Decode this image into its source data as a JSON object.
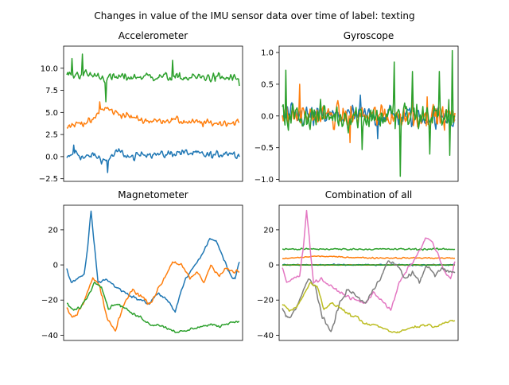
{
  "figure": {
    "title": "Changes in value of the IMU sensor data over time of label: texting"
  },
  "palette": {
    "blue": "#1f77b4",
    "orange": "#ff7f0e",
    "green": "#2ca02c",
    "pink": "#e377c2",
    "gray": "#7f7f7f",
    "olive": "#bcbd22"
  },
  "chart_data": [
    {
      "type": "line",
      "title": "Accelerometer",
      "ylim": [
        -2.8,
        12.5
      ],
      "yticks": [
        -2.5,
        0.0,
        2.5,
        5.0,
        7.5,
        10.0
      ],
      "ytick_labels": [
        "−2.5",
        "0.0",
        "2.5",
        "5.0",
        "7.5",
        "10.0"
      ],
      "grid": false,
      "x_axis_visible": false,
      "n_points": 200,
      "series": [
        {
          "color": "blue",
          "key": [
            [
              0,
              -0.3
            ],
            [
              10,
              0.5
            ],
            [
              20,
              -0.2
            ],
            [
              30,
              0.2
            ],
            [
              45,
              -0.5
            ],
            [
              60,
              0.6
            ],
            [
              75,
              -0.2
            ],
            [
              90,
              0.4
            ],
            [
              110,
              0.2
            ],
            [
              130,
              0.5
            ],
            [
              150,
              0.3
            ],
            [
              170,
              0.1
            ],
            [
              185,
              0.5
            ],
            [
              199,
              0.2
            ]
          ],
          "noise": 0.6,
          "extremes": [
            [
              8,
              1.3
            ],
            [
              47,
              -1.8
            ]
          ]
        },
        {
          "color": "orange",
          "key": [
            [
              0,
              3.4
            ],
            [
              15,
              3.8
            ],
            [
              30,
              4.0
            ],
            [
              38,
              5.2
            ],
            [
              45,
              5.5
            ],
            [
              55,
              5.0
            ],
            [
              70,
              4.6
            ],
            [
              85,
              4.2
            ],
            [
              100,
              4.0
            ],
            [
              120,
              4.2
            ],
            [
              140,
              3.9
            ],
            [
              160,
              3.8
            ],
            [
              180,
              3.8
            ],
            [
              199,
              3.9
            ]
          ],
          "noise": 0.55,
          "extremes": [
            [
              38,
              6.2
            ]
          ]
        },
        {
          "color": "green",
          "key": [
            [
              0,
              9.3
            ],
            [
              20,
              9.3
            ],
            [
              35,
              9.2
            ],
            [
              45,
              8.8
            ],
            [
              60,
              9.0
            ],
            [
              80,
              9.0
            ],
            [
              100,
              9.1
            ],
            [
              130,
              8.9
            ],
            [
              160,
              9.0
            ],
            [
              199,
              8.8
            ]
          ],
          "noise": 0.7,
          "extremes": [
            [
              18,
              11.6
            ],
            [
              6,
              11.1
            ],
            [
              45,
              6.2
            ],
            [
              122,
              10.9
            ],
            [
              199,
              8.0
            ]
          ]
        }
      ]
    },
    {
      "type": "line",
      "title": "Gyroscope",
      "ylim": [
        -1.03,
        1.1
      ],
      "yticks": [
        -1.0,
        -0.5,
        0.0,
        0.5,
        1.0
      ],
      "ytick_labels": [
        "−1.0",
        "−0.5",
        "0.0",
        "0.5",
        "1.0"
      ],
      "grid": false,
      "x_axis_visible": false,
      "n_points": 200,
      "series": [
        {
          "color": "blue",
          "key": [
            [
              0,
              0.0
            ],
            [
              50,
              0.0
            ],
            [
              100,
              0.0
            ],
            [
              150,
              0.0
            ],
            [
              199,
              -0.05
            ]
          ],
          "noise": 0.22,
          "extremes": [
            [
              90,
              0.33
            ],
            [
              110,
              -0.36
            ]
          ]
        },
        {
          "color": "orange",
          "key": [
            [
              0,
              0.0
            ],
            [
              50,
              0.0
            ],
            [
              100,
              0.0
            ],
            [
              150,
              0.0
            ],
            [
              199,
              0.0
            ]
          ],
          "noise": 0.25,
          "extremes": [
            [
              20,
              0.5
            ],
            [
              78,
              -0.42
            ],
            [
              150,
              0.5
            ],
            [
              167,
              0.3
            ]
          ]
        },
        {
          "color": "green",
          "key": [
            [
              0,
              0.0
            ],
            [
              50,
              0.0
            ],
            [
              100,
              0.0
            ],
            [
              150,
              0.0
            ],
            [
              199,
              0.0
            ]
          ],
          "noise": 0.33,
          "extremes": [
            [
              4,
              0.72
            ],
            [
              92,
              -0.53
            ],
            [
              129,
              0.85
            ],
            [
              136,
              -0.95
            ],
            [
              150,
              0.7
            ],
            [
              170,
              -0.6
            ],
            [
              181,
              0.7
            ],
            [
              196,
              1.03
            ],
            [
              193,
              -0.62
            ]
          ]
        }
      ]
    },
    {
      "type": "line",
      "title": "Magnetometer",
      "ylim": [
        -43,
        34
      ],
      "yticks": [
        -40,
        -20,
        0,
        20
      ],
      "ytick_labels": [
        "−40",
        "−20",
        "0",
        "20"
      ],
      "grid": false,
      "x_axis_visible": false,
      "n_points": 200,
      "series": [
        {
          "color": "blue",
          "key": [
            [
              0,
              -2
            ],
            [
              5,
              -10
            ],
            [
              12,
              -8
            ],
            [
              20,
              -6
            ],
            [
              24,
              10
            ],
            [
              28,
              31
            ],
            [
              32,
              10
            ],
            [
              36,
              -10
            ],
            [
              45,
              -8
            ],
            [
              55,
              -12
            ],
            [
              65,
              -15
            ],
            [
              75,
              -18
            ],
            [
              85,
              -20
            ],
            [
              95,
              -22
            ],
            [
              105,
              -16
            ],
            [
              115,
              -20
            ],
            [
              125,
              -26
            ],
            [
              135,
              -10
            ],
            [
              145,
              -2
            ],
            [
              155,
              5
            ],
            [
              165,
              15
            ],
            [
              172,
              14
            ],
            [
              180,
              5
            ],
            [
              188,
              -5
            ],
            [
              194,
              -8
            ],
            [
              199,
              2
            ]
          ],
          "noise": 1.2
        },
        {
          "color": "orange",
          "key": [
            [
              0,
              -25
            ],
            [
              6,
              -30
            ],
            [
              12,
              -28
            ],
            [
              20,
              -20
            ],
            [
              30,
              -8
            ],
            [
              38,
              -12
            ],
            [
              46,
              -30
            ],
            [
              56,
              -38
            ],
            [
              66,
              -22
            ],
            [
              76,
              -14
            ],
            [
              86,
              -18
            ],
            [
              96,
              -22
            ],
            [
              104,
              -15
            ],
            [
              112,
              -8
            ],
            [
              122,
              2
            ],
            [
              132,
              0
            ],
            [
              142,
              -8
            ],
            [
              150,
              -4
            ],
            [
              158,
              -10
            ],
            [
              166,
              0
            ],
            [
              176,
              -6
            ],
            [
              184,
              -2
            ],
            [
              192,
              -4
            ],
            [
              199,
              -4
            ]
          ],
          "noise": 1.5
        },
        {
          "color": "green",
          "key": [
            [
              0,
              -22
            ],
            [
              8,
              -26
            ],
            [
              16,
              -24
            ],
            [
              24,
              -18
            ],
            [
              32,
              -10
            ],
            [
              40,
              -12
            ],
            [
              48,
              -25
            ],
            [
              56,
              -22
            ],
            [
              66,
              -24
            ],
            [
              76,
              -28
            ],
            [
              86,
              -30
            ],
            [
              96,
              -34
            ],
            [
              106,
              -34
            ],
            [
              116,
              -36
            ],
            [
              126,
              -38
            ],
            [
              136,
              -38
            ],
            [
              146,
              -36
            ],
            [
              156,
              -35
            ],
            [
              166,
              -34
            ],
            [
              176,
              -35
            ],
            [
              186,
              -33
            ],
            [
              199,
              -32
            ]
          ],
          "noise": 1.0
        }
      ]
    },
    {
      "type": "line",
      "title": "Combination of all",
      "ylim": [
        -43,
        34
      ],
      "yticks": [
        -40,
        -20,
        0,
        20
      ],
      "ytick_labels": [
        "−40",
        "−20",
        "0",
        "20"
      ],
      "grid": false,
      "x_axis_visible": false,
      "n_points": 200,
      "series": [
        {
          "color": "blue",
          "key": [
            [
              0,
              0
            ],
            [
              199,
              0
            ]
          ],
          "noise": 0.6
        },
        {
          "color": "orange",
          "key": [
            [
              0,
              3.5
            ],
            [
              40,
              5
            ],
            [
              100,
              4
            ],
            [
              199,
              3.9
            ]
          ],
          "noise": 0.5
        },
        {
          "color": "green",
          "key": [
            [
              0,
              9
            ],
            [
              199,
              9
            ]
          ],
          "noise": 0.7
        },
        {
          "color": "blue",
          "key": [
            [
              0,
              0
            ],
            [
              199,
              0
            ]
          ],
          "noise": 0.2
        },
        {
          "color": "orange",
          "key": [
            [
              0,
              0
            ],
            [
              199,
              0
            ]
          ],
          "noise": 0.2
        },
        {
          "color": "green",
          "key": [
            [
              0,
              0
            ],
            [
              199,
              0
            ]
          ],
          "noise": 0.25
        },
        {
          "color": "pink",
          "key": [
            [
              0,
              -2
            ],
            [
              5,
              -10
            ],
            [
              12,
              -8
            ],
            [
              20,
              -6
            ],
            [
              24,
              10
            ],
            [
              28,
              31
            ],
            [
              32,
              10
            ],
            [
              36,
              -10
            ],
            [
              45,
              -8
            ],
            [
              55,
              -12
            ],
            [
              65,
              -15
            ],
            [
              75,
              -18
            ],
            [
              85,
              -20
            ],
            [
              95,
              -22
            ],
            [
              105,
              -16
            ],
            [
              115,
              -20
            ],
            [
              125,
              -26
            ],
            [
              135,
              -10
            ],
            [
              145,
              -2
            ],
            [
              155,
              5
            ],
            [
              165,
              15
            ],
            [
              172,
              14
            ],
            [
              180,
              5
            ],
            [
              188,
              -5
            ],
            [
              194,
              -8
            ],
            [
              199,
              2
            ]
          ],
          "noise": 1.2
        },
        {
          "color": "gray",
          "key": [
            [
              0,
              -25
            ],
            [
              6,
              -30
            ],
            [
              12,
              -28
            ],
            [
              20,
              -20
            ],
            [
              30,
              -8
            ],
            [
              38,
              -12
            ],
            [
              46,
              -30
            ],
            [
              56,
              -38
            ],
            [
              66,
              -22
            ],
            [
              76,
              -14
            ],
            [
              86,
              -18
            ],
            [
              96,
              -22
            ],
            [
              104,
              -15
            ],
            [
              112,
              -8
            ],
            [
              122,
              2
            ],
            [
              132,
              0
            ],
            [
              142,
              -8
            ],
            [
              150,
              -4
            ],
            [
              158,
              -10
            ],
            [
              166,
              0
            ],
            [
              176,
              -6
            ],
            [
              184,
              -2
            ],
            [
              192,
              -4
            ],
            [
              199,
              -4
            ]
          ],
          "noise": 1.5
        },
        {
          "color": "olive",
          "key": [
            [
              0,
              -22
            ],
            [
              8,
              -26
            ],
            [
              16,
              -24
            ],
            [
              24,
              -18
            ],
            [
              32,
              -10
            ],
            [
              40,
              -12
            ],
            [
              48,
              -25
            ],
            [
              56,
              -22
            ],
            [
              66,
              -24
            ],
            [
              76,
              -28
            ],
            [
              86,
              -30
            ],
            [
              96,
              -34
            ],
            [
              106,
              -34
            ],
            [
              116,
              -36
            ],
            [
              126,
              -38
            ],
            [
              136,
              -38
            ],
            [
              146,
              -36
            ],
            [
              156,
              -35
            ],
            [
              166,
              -34
            ],
            [
              176,
              -35
            ],
            [
              186,
              -33
            ],
            [
              199,
              -32
            ]
          ],
          "noise": 1.0
        }
      ]
    }
  ]
}
